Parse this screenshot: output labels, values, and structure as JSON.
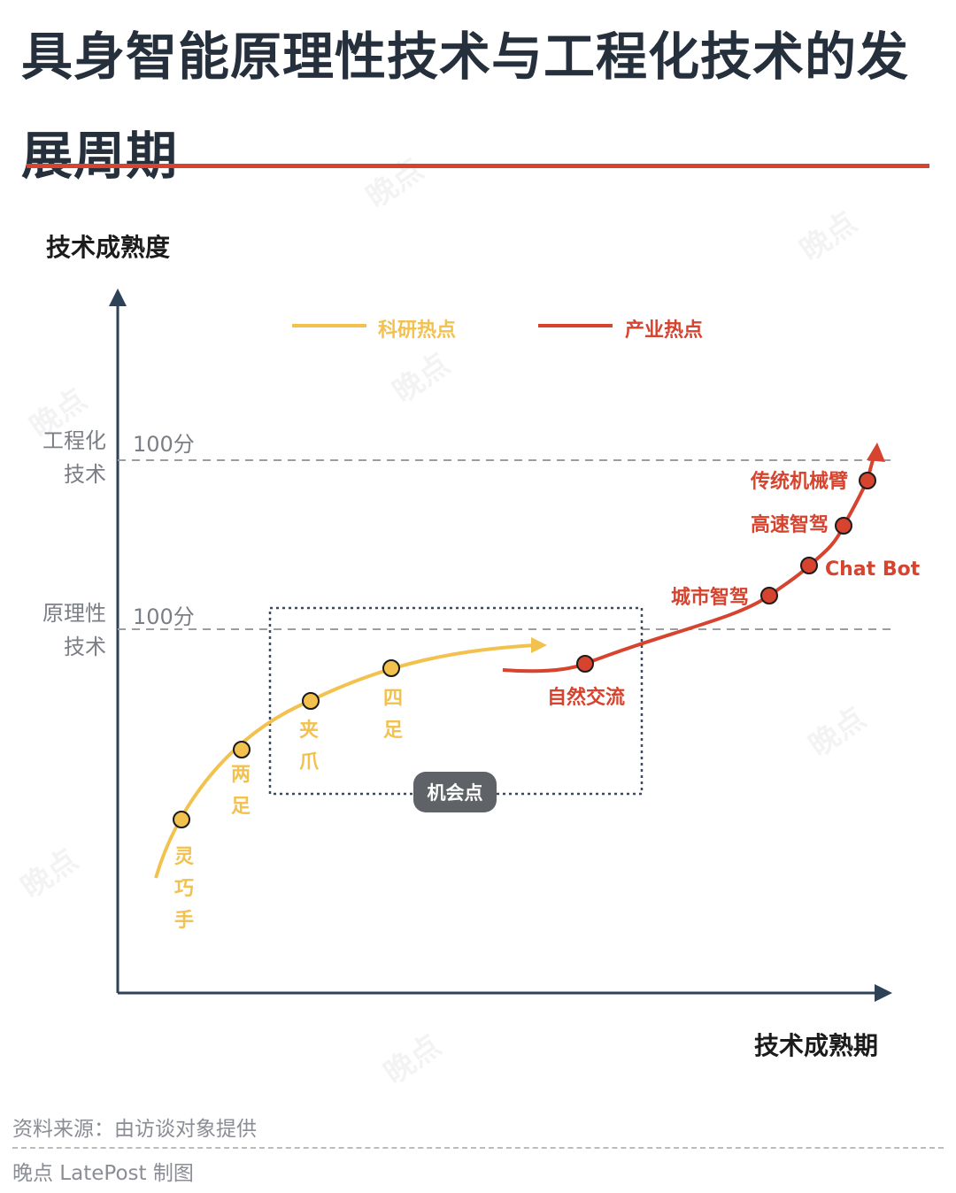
{
  "title": "具身智能原理性技术与工程化技术的发展周期",
  "chart_data": {
    "type": "line",
    "title": "具身智能原理性技术与工程化技术的发展周期",
    "ylabel": "技术成熟度",
    "xlabel": "技术成熟期",
    "levels": [
      {
        "category": "工程化技术",
        "category_lines": [
          "工程化",
          "技术"
        ],
        "score": "100分"
      },
      {
        "category": "原理性技术",
        "category_lines": [
          "原理性",
          "技术"
        ],
        "score": "100分"
      }
    ],
    "series": [
      {
        "name": "科研热点",
        "color": "#f2c14e",
        "points": [
          {
            "label": "灵巧手"
          },
          {
            "label": "两足"
          },
          {
            "label": "夹爪"
          },
          {
            "label": "四足"
          }
        ]
      },
      {
        "name": "产业热点",
        "color": "#d6432e",
        "points": [
          {
            "label": "自然交流"
          },
          {
            "label": "城市智驾"
          },
          {
            "label": "Chat Bot"
          },
          {
            "label": "高速智驾"
          },
          {
            "label": "传统机械臂"
          }
        ]
      }
    ],
    "annotation": "机会点",
    "grid": false,
    "legend_position": "top"
  },
  "footer": {
    "source": "资料来源：由访谈对象提供",
    "credit": "晚点 LatePost 制图"
  },
  "watermark": "晚点"
}
